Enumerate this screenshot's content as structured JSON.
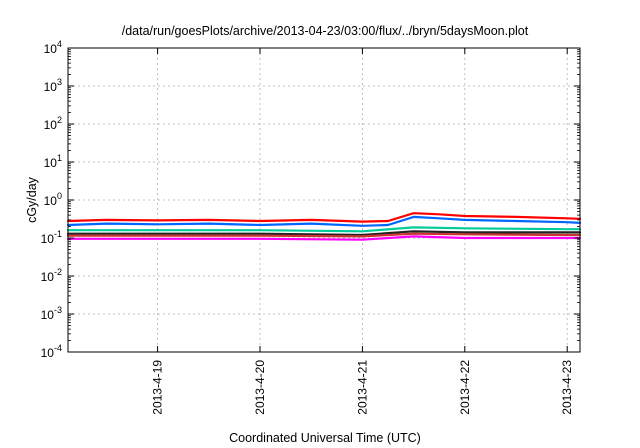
{
  "chart_data": {
    "type": "line",
    "title": "/data/run/goesPlots/archive/2013-04-23/03:00/flux/../bryn/5daysMoon.plot",
    "xlabel": "Coordinated Universal Time (UTC)",
    "ylabel": "cGy/day",
    "yscale": "log",
    "ylim": [
      0.0001,
      10000
    ],
    "xlim": [
      "2013-04-18T03:00",
      "2013-04-23T03:00"
    ],
    "grid": true,
    "legend": "none",
    "yticks": [
      {
        "base": "10",
        "exp": "4"
      },
      {
        "base": "10",
        "exp": "3"
      },
      {
        "base": "10",
        "exp": "2"
      },
      {
        "base": "10",
        "exp": "1"
      },
      {
        "base": "10",
        "exp": "0"
      },
      {
        "base": "10",
        "exp": "-1"
      },
      {
        "base": "10",
        "exp": "-2"
      },
      {
        "base": "10",
        "exp": "-3"
      },
      {
        "base": "10",
        "exp": "-4"
      }
    ],
    "xticks": [
      "2013-4-19",
      "2013-4-20",
      "2013-4-21",
      "2013-4-22",
      "2013-4-23"
    ],
    "series": [
      {
        "color": "#ff0000",
        "x": [
          "2013-04-18T03:00",
          "2013-04-18T12:00",
          "2013-04-19T00:00",
          "2013-04-19T12:00",
          "2013-04-20T00:00",
          "2013-04-20T12:00",
          "2013-04-21T00:00",
          "2013-04-21T06:00",
          "2013-04-21T12:00",
          "2013-04-21T18:00",
          "2013-04-22T00:00",
          "2013-04-22T12:00",
          "2013-04-23T00:00",
          "2013-04-23T03:00"
        ],
        "values": [
          0.28,
          0.3,
          0.29,
          0.3,
          0.28,
          0.3,
          0.27,
          0.28,
          0.45,
          0.42,
          0.38,
          0.36,
          0.33,
          0.32
        ]
      },
      {
        "color": "#0066ff",
        "x": [
          "2013-04-18T03:00",
          "2013-04-18T12:00",
          "2013-04-19T00:00",
          "2013-04-19T12:00",
          "2013-04-20T00:00",
          "2013-04-20T12:00",
          "2013-04-21T00:00",
          "2013-04-21T06:00",
          "2013-04-21T12:00",
          "2013-04-21T18:00",
          "2013-04-22T00:00",
          "2013-04-22T12:00",
          "2013-04-23T00:00",
          "2013-04-23T03:00"
        ],
        "values": [
          0.22,
          0.24,
          0.23,
          0.24,
          0.22,
          0.24,
          0.21,
          0.22,
          0.36,
          0.33,
          0.3,
          0.28,
          0.26,
          0.25
        ]
      },
      {
        "color": "#00cc99",
        "x": [
          "2013-04-18T03:00",
          "2013-04-19T00:00",
          "2013-04-20T00:00",
          "2013-04-21T00:00",
          "2013-04-21T12:00",
          "2013-04-22T00:00",
          "2013-04-23T00:00",
          "2013-04-23T03:00"
        ],
        "values": [
          0.16,
          0.16,
          0.16,
          0.15,
          0.19,
          0.18,
          0.17,
          0.17
        ]
      },
      {
        "color": "#222222",
        "x": [
          "2013-04-18T03:00",
          "2013-04-19T00:00",
          "2013-04-20T00:00",
          "2013-04-21T00:00",
          "2013-04-21T12:00",
          "2013-04-22T00:00",
          "2013-04-23T00:00",
          "2013-04-23T03:00"
        ],
        "values": [
          0.13,
          0.13,
          0.13,
          0.12,
          0.15,
          0.14,
          0.14,
          0.14
        ]
      },
      {
        "color": "#cc3333",
        "x": [
          "2013-04-18T03:00",
          "2013-04-19T00:00",
          "2013-04-20T00:00",
          "2013-04-21T00:00",
          "2013-04-21T12:00",
          "2013-04-22T00:00",
          "2013-04-23T00:00",
          "2013-04-23T03:00"
        ],
        "values": [
          0.115,
          0.115,
          0.115,
          0.11,
          0.13,
          0.125,
          0.12,
          0.12
        ]
      },
      {
        "color": "#ff00ff",
        "x": [
          "2013-04-18T03:00",
          "2013-04-19T00:00",
          "2013-04-20T00:00",
          "2013-04-21T00:00",
          "2013-04-21T12:00",
          "2013-04-22T00:00",
          "2013-04-23T00:00",
          "2013-04-23T03:00"
        ],
        "values": [
          0.095,
          0.095,
          0.095,
          0.09,
          0.11,
          0.1,
          0.1,
          0.1
        ]
      }
    ]
  }
}
